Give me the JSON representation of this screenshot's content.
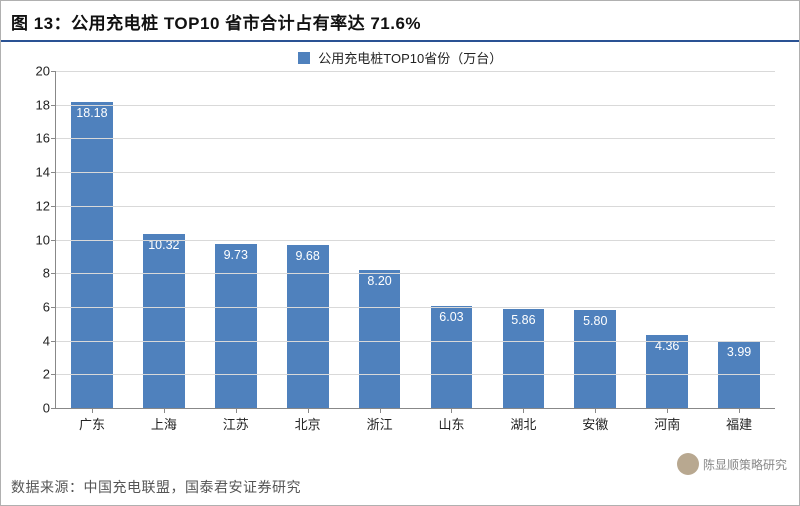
{
  "title": "图 13：公用充电桩 TOP10 省市合计占有率达 71.6%",
  "legend": {
    "label": "公用充电桩TOP10省份（万台）",
    "color": "#4f81bd"
  },
  "source": "数据来源：中国充电联盟，国泰君安证券研究",
  "watermark": "陈显顺策略研究",
  "chart": {
    "type": "bar",
    "ylim": [
      0,
      20
    ],
    "ytick_step": 2,
    "yticks": [
      0,
      2,
      4,
      6,
      8,
      10,
      12,
      14,
      16,
      18,
      20
    ],
    "grid_color": "#d9d9d9",
    "axis_color": "#888888",
    "background_color": "#ffffff",
    "bar_color": "#4f81bd",
    "bar_width_ratio": 0.58,
    "value_label_color": "#ffffff",
    "value_label_fontsize": 12.5,
    "tick_fontsize": 13,
    "title_fontsize": 17,
    "categories": [
      "广东",
      "上海",
      "江苏",
      "北京",
      "浙江",
      "山东",
      "湖北",
      "安徽",
      "河南",
      "福建"
    ],
    "values": [
      18.18,
      10.32,
      9.73,
      9.68,
      8.2,
      6.03,
      5.86,
      5.8,
      4.36,
      3.99
    ],
    "value_labels": [
      "18.18",
      "10.32",
      "9.73",
      "9.68",
      "8.20",
      "6.03",
      "5.86",
      "5.80",
      "4.36",
      "3.99"
    ]
  }
}
